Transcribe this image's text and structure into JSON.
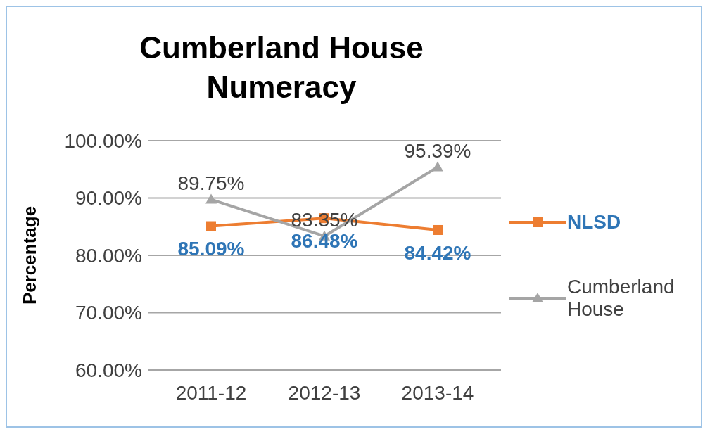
{
  "chart_data": {
    "type": "line",
    "title": "Cumberland House Numeracy",
    "ylabel": "Percentage",
    "categories": [
      "2011-12",
      "2012-13",
      "2013-14"
    ],
    "series": [
      {
        "name": "NLSD",
        "color": "#ed7d31",
        "values": [
          85.09,
          86.48,
          84.42
        ],
        "marker": "square",
        "value_labels": [
          "85.09%",
          "86.48%",
          "84.42%"
        ]
      },
      {
        "name": "Cumberland House",
        "color": "#a5a5a5",
        "values": [
          89.75,
          83.35,
          95.39
        ],
        "marker": "triangle",
        "value_labels": [
          "89.75%",
          "83.35%",
          "95.39%"
        ]
      }
    ],
    "ylim": [
      60,
      100
    ],
    "yticks": [
      {
        "value": 60,
        "label": "60.00%"
      },
      {
        "value": 70,
        "label": "70.00%"
      },
      {
        "value": 80,
        "label": "80.00%"
      },
      {
        "value": 90,
        "label": "90.00%"
      },
      {
        "value": 100,
        "label": "100.00%"
      }
    ],
    "grid": "y",
    "legend": "right",
    "line_style": "solid"
  }
}
